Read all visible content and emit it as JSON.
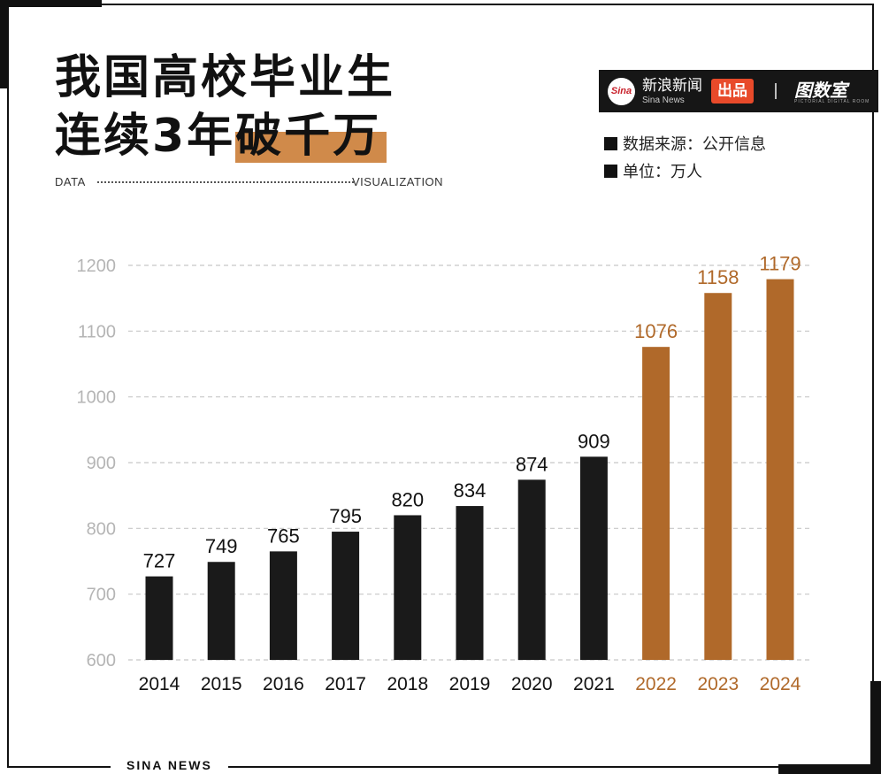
{
  "title": {
    "line1": "我国高校毕业生",
    "line2_plain": "连续3年",
    "line2_highlight": "破千万"
  },
  "subtitle": {
    "left": "DATA",
    "right": "VISUALIZATION"
  },
  "brand": {
    "logo": "Sina",
    "name": "新浪新闻",
    "name_sub": "Sina News",
    "tag": "出品",
    "room": "图数室",
    "room_sub": "PICTORIAL DIGITAL ROOM"
  },
  "notes": {
    "source": "数据来源：公开信息",
    "unit": "单位：万人"
  },
  "footer": "SINA NEWS",
  "colors": {
    "dark": "#1a1a1a",
    "accent": "#b0692a",
    "highlight": "#d08a4a"
  },
  "chart_data": {
    "type": "bar",
    "categories": [
      "2014",
      "2015",
      "2016",
      "2017",
      "2018",
      "2019",
      "2020",
      "2021",
      "2022",
      "2023",
      "2024"
    ],
    "values": [
      727,
      749,
      765,
      795,
      820,
      834,
      874,
      909,
      1076,
      1158,
      1179
    ],
    "value_labels": [
      "727",
      "749",
      "765",
      "795",
      "820",
      "834",
      "874",
      "909",
      "1076",
      "1158",
      "1179"
    ],
    "highlighted": [
      false,
      false,
      false,
      false,
      false,
      false,
      false,
      false,
      true,
      true,
      true
    ],
    "yticks": [
      600,
      700,
      800,
      900,
      1000,
      1100,
      1200
    ],
    "ylim": [
      600,
      1200
    ],
    "grid": true
  }
}
